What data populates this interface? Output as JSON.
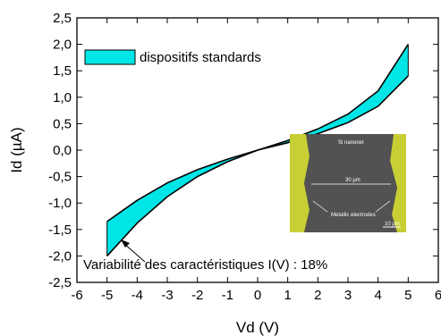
{
  "chart_data": {
    "type": "area",
    "title": "",
    "xlabel": "Vd (V)",
    "ylabel": "Id  (µA)",
    "xlim": [
      -6,
      6
    ],
    "ylim": [
      -2.5,
      2.5
    ],
    "x_ticks": [
      "-6",
      "-5",
      "-4",
      "-3",
      "-2",
      "-1",
      "0",
      "1",
      "2",
      "3",
      "4",
      "5",
      "6"
    ],
    "y_ticks": [
      "-2,5",
      "-2,0",
      "-1,5",
      "-1,0",
      "-0,5",
      "0,0",
      "0,5",
      "1,0",
      "1,5",
      "2,0",
      "2,5"
    ],
    "grid": false,
    "legend": {
      "position": "top-left",
      "entries": [
        "dispositifs standards"
      ]
    },
    "fill_color": "#00E5E5",
    "band": {
      "x": [
        -5,
        -4,
        -3,
        -2,
        -1,
        0,
        1,
        2,
        3,
        4,
        5
      ],
      "upper": [
        -1.35,
        -0.95,
        -0.62,
        -0.37,
        -0.17,
        0.0,
        0.18,
        0.4,
        0.68,
        1.12,
        2.0
      ],
      "lower": [
        -2.0,
        -1.38,
        -0.88,
        -0.5,
        -0.22,
        0.0,
        0.14,
        0.31,
        0.52,
        0.83,
        1.4
      ]
    },
    "annotation": "Variabilité des caractéristiques I(V) : 18%",
    "inset": {
      "label_top": "Si nanonet",
      "label_mid": "30 µm",
      "label_electrodes": "Metallic electrodes",
      "scale_bar": "10 µm"
    }
  }
}
